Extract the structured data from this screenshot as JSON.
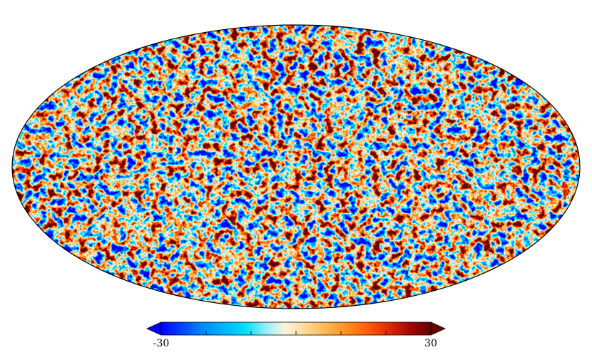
{
  "map": {
    "projection": "mollweide",
    "outline_color": "#000000"
  },
  "colorbar": {
    "min_label": "-30",
    "max_label": "30",
    "min": -30,
    "max": 30,
    "extend": "both",
    "colormap": [
      "#0000ff",
      "#0044ff",
      "#0088ff",
      "#00b4ff",
      "#00dcff",
      "#8ceeff",
      "#fff4dc",
      "#ffd890",
      "#ffb450",
      "#ff8c1e",
      "#ff5a0a",
      "#dc2800",
      "#a00a00",
      "#640000"
    ]
  }
}
